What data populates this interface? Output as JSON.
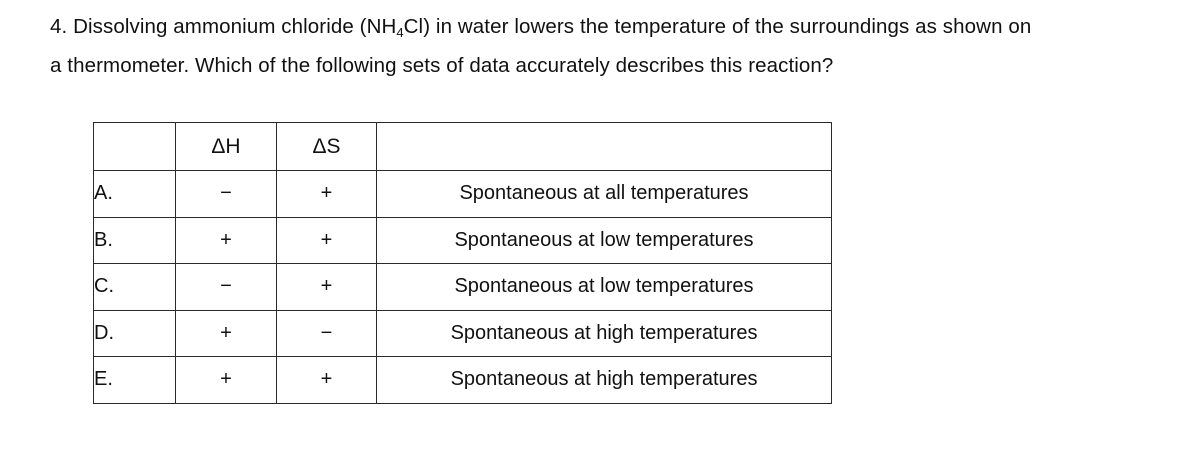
{
  "question": {
    "line1_prefix": "4. Dissolving ammonium chloride (NH",
    "line1_sub": "4",
    "line1_suffix": "Cl) in water lowers the temperature of the surroundings as shown on",
    "line2": "a thermometer. Which of the following sets of data accurately describes this reaction?"
  },
  "table": {
    "headers": {
      "option": "",
      "dH": "ΔH",
      "dS": "ΔS",
      "description": ""
    },
    "rows": [
      {
        "option": "A.",
        "dH": "−",
        "dS": "+",
        "description": "Spontaneous at all temperatures"
      },
      {
        "option": "B.",
        "dH": "+",
        "dS": "+",
        "description": "Spontaneous at low temperatures"
      },
      {
        "option": "C.",
        "dH": "−",
        "dS": "+",
        "description": "Spontaneous at low temperatures"
      },
      {
        "option": "D.",
        "dH": "+",
        "dS": "−",
        "description": "Spontaneous at high temperatures"
      },
      {
        "option": "E.",
        "dH": "+",
        "dS": "+",
        "description": "Spontaneous at high temperatures"
      }
    ]
  },
  "colors": {
    "text": "#111111",
    "table_border": "#2a2a2a",
    "background": "#ffffff"
  }
}
